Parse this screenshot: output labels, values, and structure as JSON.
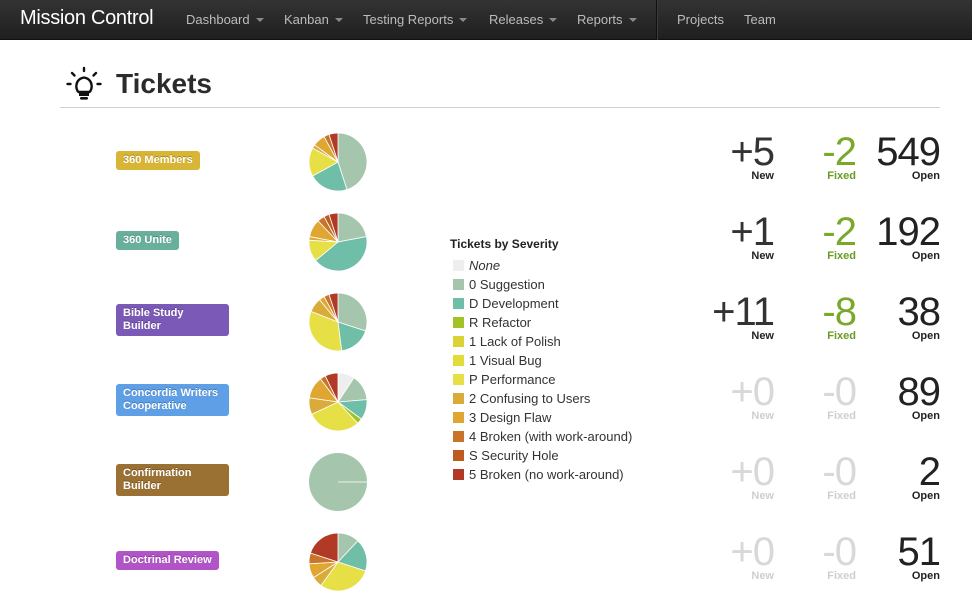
{
  "navbar": {
    "brand": "Mission Control",
    "menus": [
      {
        "label": "Dashboard",
        "dropdown": true
      },
      {
        "label": "Kanban",
        "dropdown": true
      },
      {
        "label": "Testing Reports",
        "dropdown": true
      },
      {
        "label": "Releases",
        "dropdown": true
      },
      {
        "label": "Reports",
        "dropdown": true
      },
      {
        "label": "Projects",
        "dropdown": false
      },
      {
        "label": "Team",
        "dropdown": false
      }
    ]
  },
  "page": {
    "title": "Tickets",
    "icon": "lightbulb-icon"
  },
  "stat_captions": {
    "new": "New",
    "fixed": "Fixed",
    "open": "Open"
  },
  "projects": [
    {
      "name": "360 Members",
      "color": "#d9b536",
      "new": "+5",
      "fixed": "-2",
      "open": "549",
      "new_dim": false,
      "fixed_dim": false,
      "severity_counts": [
        0,
        45,
        22,
        0,
        0,
        0,
        16,
        2,
        7,
        3,
        0,
        5
      ]
    },
    {
      "name": "360 Unite",
      "color": "#68b09b",
      "new": "+1",
      "fixed": "-2",
      "open": "192",
      "new_dim": false,
      "fixed_dim": false,
      "severity_counts": [
        0,
        22,
        42,
        0,
        0,
        0,
        12,
        2,
        10,
        4,
        3,
        5
      ]
    },
    {
      "name": "Bible Study Builder",
      "color": "#7b59b6",
      "new": "+11",
      "fixed": "-8",
      "open": "38",
      "new_dim": false,
      "fixed_dim": false,
      "severity_counts": [
        0,
        30,
        18,
        0,
        0,
        0,
        33,
        8,
        3,
        3,
        0,
        5
      ]
    },
    {
      "name": "Concordia Writers Cooperative",
      "color": "#5f9fe6",
      "new": "+0",
      "fixed": "-0",
      "open": "89",
      "new_dim": true,
      "fixed_dim": true,
      "severity_counts": [
        9,
        14,
        11,
        3,
        0,
        0,
        29,
        9,
        12,
        3,
        0,
        7
      ]
    },
    {
      "name": "Confirmation Builder",
      "color": "#9a7033",
      "new": "+0",
      "fixed": "-0",
      "open": "2",
      "new_dim": true,
      "fixed_dim": true,
      "severity_counts": [
        0,
        100,
        0,
        0,
        0,
        0,
        0,
        0,
        0,
        0,
        0,
        0
      ]
    },
    {
      "name": "Doctrinal Review",
      "color": "#b154c7",
      "new": "+0",
      "fixed": "-0",
      "open": "51",
      "new_dim": true,
      "fixed_dim": true,
      "severity_counts": [
        0,
        12,
        18,
        0,
        0,
        0,
        30,
        6,
        8,
        6,
        0,
        20
      ]
    }
  ],
  "legend": {
    "title": "Tickets by Severity",
    "items": [
      {
        "label": "None",
        "color": "#eeeeee"
      },
      {
        "label": "0 Suggestion",
        "color": "#a5c5ad"
      },
      {
        "label": "D Development",
        "color": "#6fbea8"
      },
      {
        "label": "R Refactor",
        "color": "#a3c225"
      },
      {
        "label": "1 Lack of Polish",
        "color": "#dbd335"
      },
      {
        "label": "1 Visual Bug",
        "color": "#e2dc3a"
      },
      {
        "label": "P Performance",
        "color": "#e6df45"
      },
      {
        "label": "2 Confusing to Users",
        "color": "#d9ab3a"
      },
      {
        "label": "3 Design Flaw",
        "color": "#dfa631"
      },
      {
        "label": "4 Broken (with work-around)",
        "color": "#c8742a"
      },
      {
        "label": "S Security Hole",
        "color": "#bd5a1f"
      },
      {
        "label": "5 Broken (no work-around)",
        "color": "#b03a25"
      }
    ]
  }
}
